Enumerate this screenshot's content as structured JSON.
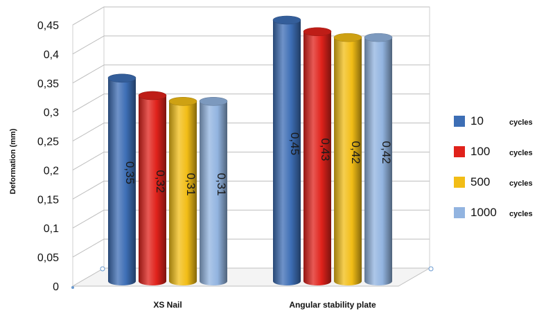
{
  "chart_data": {
    "type": "bar",
    "style": "3d-cylinder",
    "categories": [
      "XS Nail",
      "Angular stability plate"
    ],
    "series": [
      {
        "name": "10 cycles",
        "legend_value": "10",
        "legend_unit": "cycles",
        "color": "#3d6eb5",
        "values": [
          0.35,
          0.45
        ],
        "labels": [
          "0,35",
          "0,45"
        ]
      },
      {
        "name": "100 cycles",
        "legend_value": "100",
        "legend_unit": "cycles",
        "color": "#e0221b",
        "values": [
          0.32,
          0.43
        ],
        "labels": [
          "0,32",
          "0,43"
        ]
      },
      {
        "name": "500 cycles",
        "legend_value": "500",
        "legend_unit": "cycles",
        "color": "#f2bd16",
        "values": [
          0.31,
          0.42
        ],
        "labels": [
          "0,31",
          "0,42"
        ]
      },
      {
        "name": "1000 cycles",
        "legend_value": "1000",
        "legend_unit": "cycles",
        "color": "#92b4e0",
        "values": [
          0.31,
          0.42
        ],
        "labels": [
          "0,31",
          "0,42"
        ]
      }
    ],
    "ylabel": "Deformation (mm)",
    "xlabel": "",
    "ylim": [
      0,
      0.45
    ],
    "yticks": [
      0,
      0.05,
      0.1,
      0.15,
      0.2,
      0.25,
      0.3,
      0.35,
      0.4,
      0.45
    ],
    "ytick_labels": [
      "0",
      "0,05",
      "0,1",
      "0,15",
      "0,2",
      "0,25",
      "0,3",
      "0,35",
      "0,4",
      "0,45"
    ],
    "grid": true,
    "legend_position": "right"
  }
}
